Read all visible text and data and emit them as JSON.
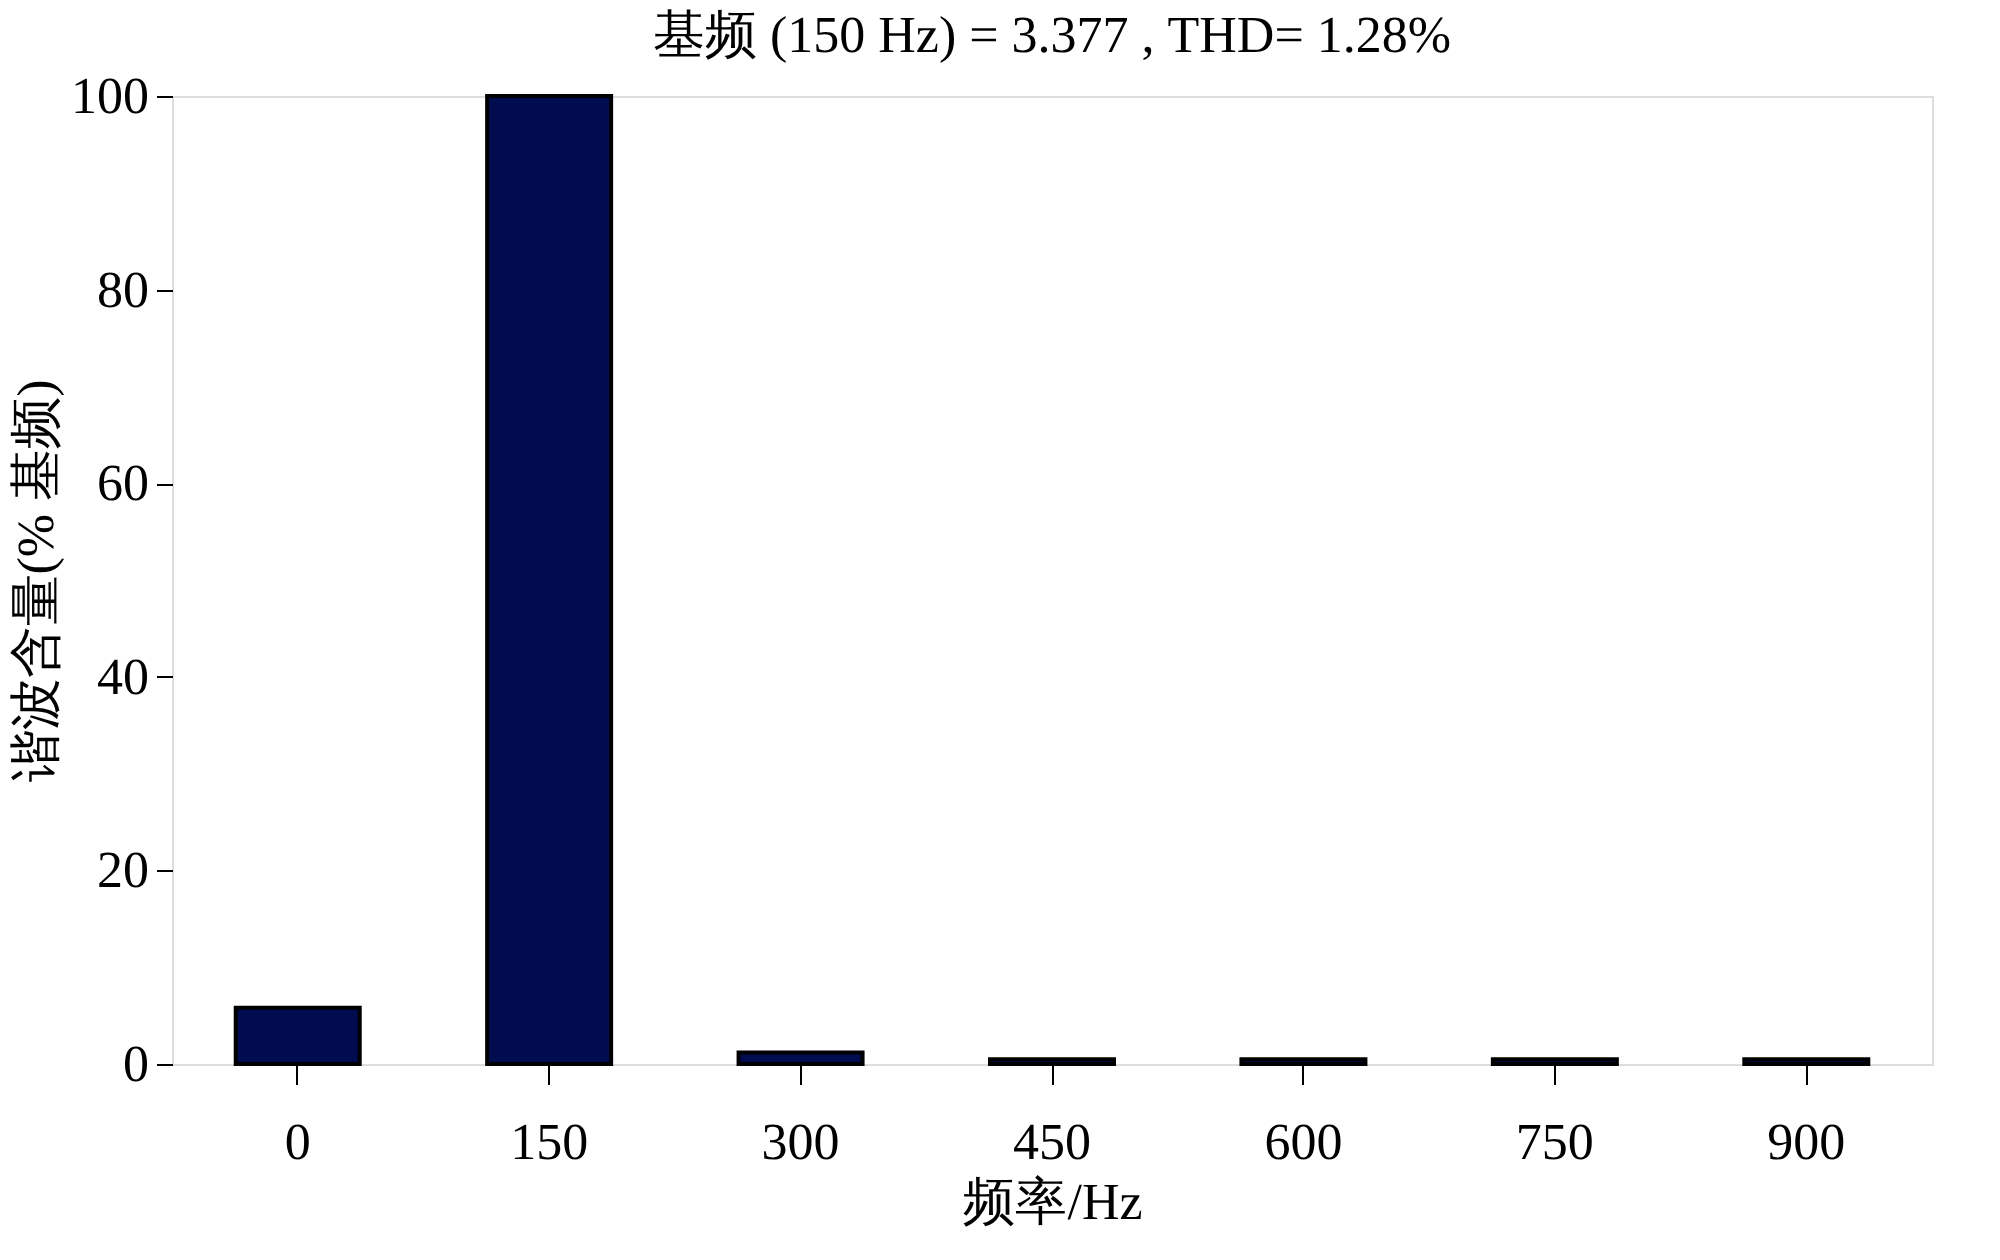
{
  "chart_data": {
    "type": "bar",
    "title": "基频 (150 Hz) = 3.377 , THD= 1.28%",
    "xlabel": "频率/Hz",
    "ylabel": "谐波含量(% 基频)",
    "categories": [
      "0",
      "150",
      "300",
      "450",
      "600",
      "750",
      "900"
    ],
    "values": [
      5.8,
      100,
      1.2,
      0.5,
      0.5,
      0.5,
      0.5
    ],
    "color": "#000c4f",
    "ylim": [
      0,
      100
    ],
    "yticks": [
      0,
      20,
      40,
      60,
      80,
      100
    ],
    "grid": false
  }
}
